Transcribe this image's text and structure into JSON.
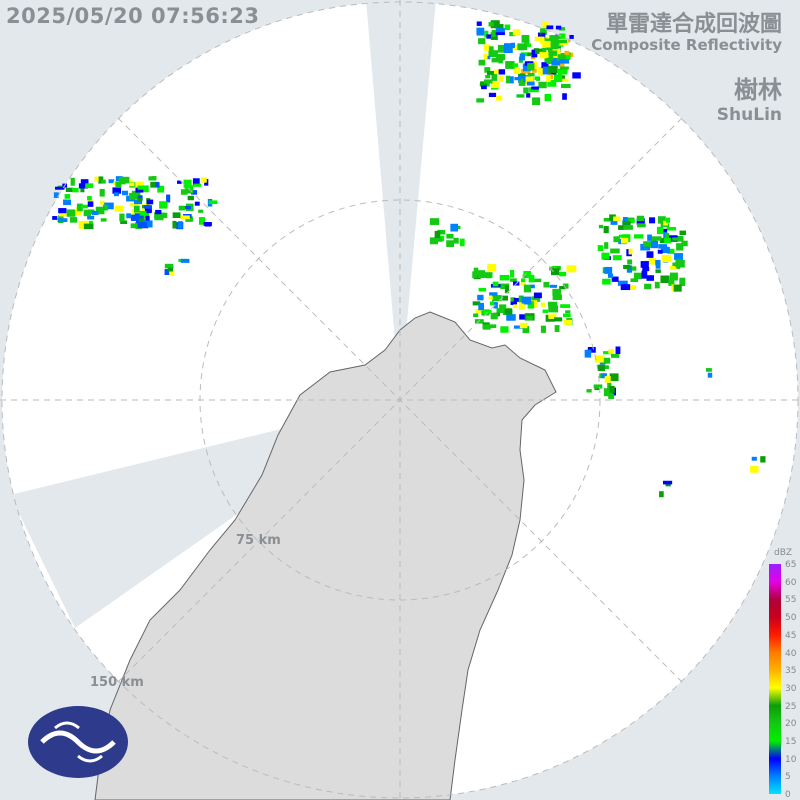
{
  "timestamp": "2025/05/20 07:56:23",
  "title": {
    "zh": "單雷達合成回波圖",
    "en": "Composite Reflectivity"
  },
  "station": {
    "zh": "樹林",
    "en": "ShuLin"
  },
  "range_labels": [
    "75 km",
    "150 km"
  ],
  "legend": {
    "unit": "dBZ",
    "ticks": [
      "65",
      "60",
      "55",
      "50",
      "45",
      "40",
      "35",
      "30",
      "25",
      "20",
      "15",
      "10",
      "5",
      "0"
    ],
    "colors": [
      "#9b1fff",
      "#e600e6",
      "#b0003a",
      "#c8001e",
      "#ff1a00",
      "#ff7a00",
      "#ffb000",
      "#ffff00",
      "#0a9e0a",
      "#14c814",
      "#00f000",
      "#0000ff",
      "#0080ff",
      "#00e5ff"
    ]
  },
  "colors": {
    "background": "#e3e8ed",
    "coverage": "#ffffff",
    "land": "#dcdcdc",
    "blocked": "#e3e8ed"
  },
  "logo": "agency-logo"
}
